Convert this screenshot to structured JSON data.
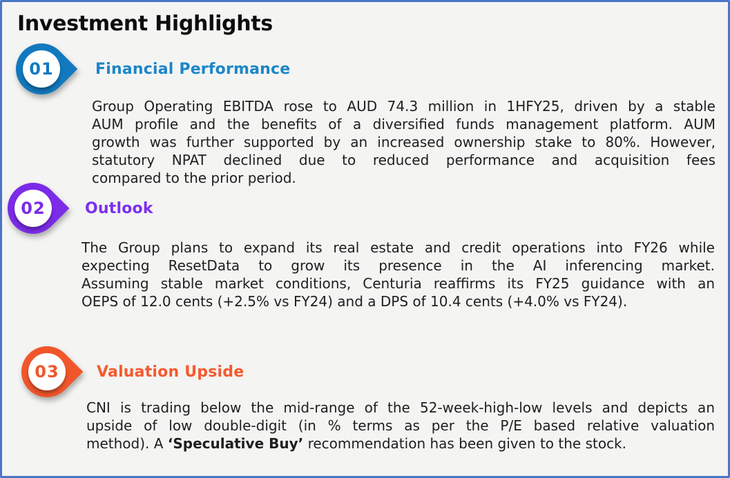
{
  "title": "Investment Highlights",
  "colors": {
    "frame_border": "#4A74C6",
    "background": "#F4F4F3",
    "title_text": "#0D0D0D",
    "body_text": "#1E1E1E"
  },
  "sections": [
    {
      "number": "01",
      "title": "Financial Performance",
      "badge_color": "#1279BF",
      "title_color": "#1B86CA",
      "lines": [
        [
          {
            "t": "Group Operating EBITDA rose to AUD 74.3 million in 1HFY25, driven by a stable",
            "b": false
          }
        ],
        [
          {
            "t": "AUM profile and the benefits of a diversified funds management platform. AUM",
            "b": false
          }
        ],
        [
          {
            "t": "growth was further supported by an increased ownership stake to 80%. However,",
            "b": false
          }
        ],
        [
          {
            "t": "statutory NPAT declined due to reduced performance and acquisition fees",
            "b": false
          }
        ],
        [
          {
            "t": "compared to the prior period.",
            "b": false
          }
        ]
      ]
    },
    {
      "number": "02",
      "title": "Outlook",
      "badge_color": "#7C2BE8",
      "title_color": "#7C2FEF",
      "lines": [
        [
          {
            "t": "The Group plans to expand its real estate and credit operations into FY26 while",
            "b": false
          }
        ],
        [
          {
            "t": "expecting ResetData to grow its presence in the AI inferencing market.",
            "b": false
          }
        ],
        [
          {
            "t": "Assuming stable market conditions, Centuria reaffirms its FY25 guidance with an",
            "b": false
          }
        ],
        [
          {
            "t": "OEPS of 12.0 cents (+2.5% vs FY24) and a DPS of 10.4 cents (+4.0% vs FY24).",
            "b": false
          }
        ]
      ]
    },
    {
      "number": "03",
      "title": "Valuation Upside",
      "badge_color": "#F1562B",
      "title_color": "#F65A2E",
      "lines": [
        [
          {
            "t": "CNI is trading below the mid-range of the 52-week-high-low levels and depicts an",
            "b": false
          }
        ],
        [
          {
            "t": "upside of low double-digit (in % terms as per the P/E based relative valuation",
            "b": false
          }
        ],
        [
          {
            "t": "method). A ",
            "b": false
          },
          {
            "t": "‘Speculative Buy’",
            "b": true
          },
          {
            "t": " recommendation has been given to the stock.",
            "b": false
          }
        ]
      ]
    }
  ]
}
